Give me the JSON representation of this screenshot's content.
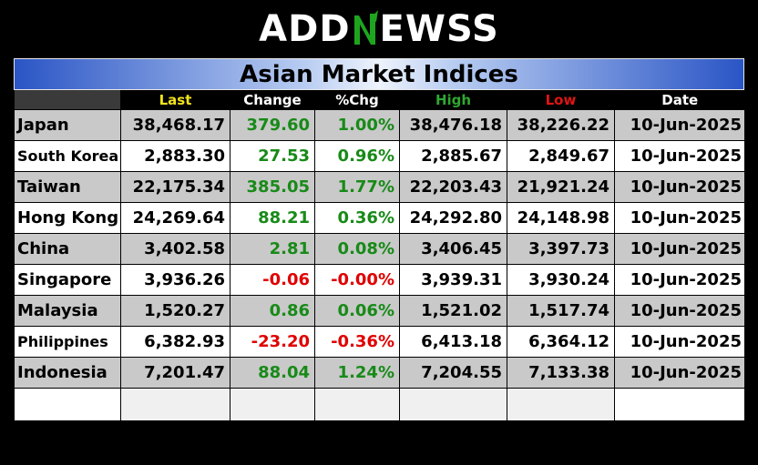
{
  "logo": {
    "text_left": "ADD",
    "text_right": "EWSS",
    "mark_color": "#1ea51e"
  },
  "title": "Asian Market Indices",
  "headers": [
    "",
    "Last",
    "Change",
    "%Chg",
    "High",
    "Low",
    "Date"
  ],
  "header_colors": {
    "last": "#f2e21b",
    "high": "#2fa82f",
    "low": "#e01414",
    "default": "#ffffff"
  },
  "rows": [
    {
      "country": "Japan",
      "last": "38,468.17",
      "change": "379.60",
      "pct": "1.00%",
      "high": "38,476.18",
      "low": "38,226.22",
      "date": "10-Jun-2025",
      "dir": "pos"
    },
    {
      "country": "South Korea",
      "last": "2,883.30",
      "change": "27.53",
      "pct": "0.96%",
      "high": "2,885.67",
      "low": "2,849.67",
      "date": "10-Jun-2025",
      "dir": "pos"
    },
    {
      "country": "Taiwan",
      "last": "22,175.34",
      "change": "385.05",
      "pct": "1.77%",
      "high": "22,203.43",
      "low": "21,921.24",
      "date": "10-Jun-2025",
      "dir": "pos"
    },
    {
      "country": "Hong Kong",
      "last": "24,269.64",
      "change": "88.21",
      "pct": "0.36%",
      "high": "24,292.80",
      "low": "24,148.98",
      "date": "10-Jun-2025",
      "dir": "pos"
    },
    {
      "country": "China",
      "last": "3,402.58",
      "change": "2.81",
      "pct": "0.08%",
      "high": "3,406.45",
      "low": "3,397.73",
      "date": "10-Jun-2025",
      "dir": "pos"
    },
    {
      "country": "Singapore",
      "last": "3,936.26",
      "change": "-0.06",
      "pct": "-0.00%",
      "high": "3,939.31",
      "low": "3,930.24",
      "date": "10-Jun-2025",
      "dir": "neg"
    },
    {
      "country": "Malaysia",
      "last": "1,520.27",
      "change": "0.86",
      "pct": "0.06%",
      "high": "1,521.02",
      "low": "1,517.74",
      "date": "10-Jun-2025",
      "dir": "pos"
    },
    {
      "country": "Philippines",
      "last": "6,382.93",
      "change": "-23.20",
      "pct": "-0.36%",
      "high": "6,413.18",
      "low": "6,364.12",
      "date": "10-Jun-2025",
      "dir": "neg"
    },
    {
      "country": "Indonesia",
      "last": "7,201.47",
      "change": "88.04",
      "pct": "1.24%",
      "high": "7,204.55",
      "low": "7,133.38",
      "date": "10-Jun-2025",
      "dir": "pos"
    }
  ]
}
